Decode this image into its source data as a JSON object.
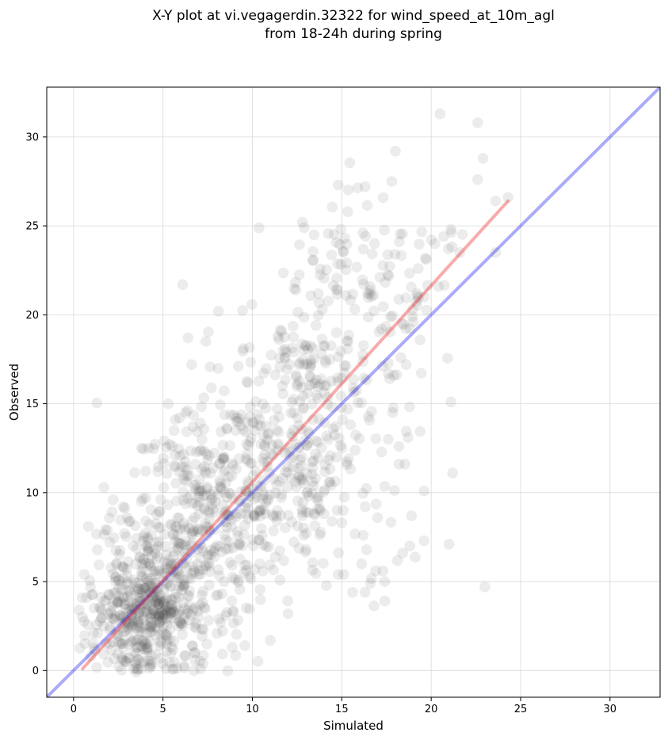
{
  "chart_data": {
    "type": "scatter",
    "title_lines": [
      "X-Y plot at vi.vegagerdin.32322 for wind_speed_at_10m_agl",
      "from 18-24h during spring"
    ],
    "xlabel": "Simulated",
    "ylabel": "Observed",
    "xlim": [
      -1.5,
      32.8
    ],
    "ylim": [
      -1.5,
      32.8
    ],
    "xticks": [
      0,
      5,
      10,
      15,
      20,
      25,
      30
    ],
    "yticks": [
      0,
      5,
      10,
      15,
      20,
      25,
      30
    ],
    "grid": true,
    "point_color": "#404040",
    "one_to_one_line": {
      "x": [
        -1.5,
        32.8
      ],
      "y": [
        -1.5,
        32.8
      ],
      "color": "#0000ee"
    },
    "fit_line": {
      "x": [
        0.5,
        24.3
      ],
      "y": [
        0.1,
        26.4
      ],
      "color": "#ee2222"
    },
    "clusters": [
      {
        "cx": 4.0,
        "cy": 3.2,
        "sx": 1.8,
        "sy": 2.2,
        "n": 520
      },
      {
        "cx": 7.0,
        "cy": 7.5,
        "sx": 2.2,
        "sy": 2.8,
        "n": 320
      },
      {
        "cx": 10.5,
        "cy": 11.5,
        "sx": 2.4,
        "sy": 3.0,
        "n": 230
      },
      {
        "cx": 13.5,
        "cy": 16.5,
        "sx": 2.0,
        "sy": 3.2,
        "n": 170
      },
      {
        "cx": 17.0,
        "cy": 22.5,
        "sx": 2.3,
        "sy": 2.6,
        "n": 110
      },
      {
        "cx": 14.0,
        "cy": 9.0,
        "sx": 2.6,
        "sy": 3.0,
        "n": 60
      }
    ],
    "points": [
      [
        20.5,
        31.3
      ],
      [
        22.6,
        30.8
      ],
      [
        18.0,
        29.2
      ],
      [
        22.9,
        28.8
      ],
      [
        17.8,
        27.5
      ],
      [
        22.6,
        27.6
      ],
      [
        14.8,
        27.3
      ],
      [
        16.3,
        27.2
      ],
      [
        24.3,
        26.6
      ],
      [
        12.8,
        25.2
      ],
      [
        12.9,
        24.9
      ],
      [
        23.6,
        26.4
      ],
      [
        21.1,
        24.8
      ],
      [
        20.2,
        24.0
      ],
      [
        23.6,
        23.5
      ],
      [
        21.2,
        11.1
      ],
      [
        23.0,
        4.7
      ],
      [
        21.0,
        7.1
      ],
      [
        19.6,
        7.3
      ],
      [
        19.6,
        10.1
      ],
      [
        18.7,
        13.1
      ],
      [
        18.3,
        17.6
      ],
      [
        18.6,
        17.2
      ],
      [
        17.6,
        16.7
      ],
      [
        20.4,
        21.6
      ],
      [
        19.2,
        21.2
      ],
      [
        17.4,
        5.0
      ],
      [
        16.9,
        5.6
      ],
      [
        17.3,
        5.6
      ],
      [
        16.6,
        4.9
      ],
      [
        16.3,
        4.4
      ],
      [
        15.6,
        4.4
      ],
      [
        16.2,
        7.6
      ],
      [
        17.0,
        8.6
      ],
      [
        18.4,
        6.6
      ],
      [
        18.8,
        7.0
      ],
      [
        18.2,
        11.6
      ],
      [
        17.6,
        13.0
      ],
      [
        18.2,
        12.6
      ],
      [
        18.9,
        8.7
      ],
      [
        6.1,
        21.7
      ],
      [
        8.1,
        20.2
      ],
      [
        6.4,
        18.7
      ],
      [
        7.4,
        18.5
      ],
      [
        6.6,
        17.2
      ],
      [
        9.5,
        18.1
      ],
      [
        5.3,
        15.0
      ],
      [
        11.0,
        1.7
      ],
      [
        12.0,
        3.2
      ],
      [
        15.0,
        8.3
      ],
      [
        16.1,
        6.0
      ],
      [
        15.1,
        5.4
      ],
      [
        14.8,
        5.4
      ],
      [
        3.8,
        12.5
      ],
      [
        4.2,
        12.5
      ],
      [
        1.7,
        10.3
      ],
      [
        0.5,
        3.0
      ],
      [
        0.6,
        5.4
      ]
    ]
  }
}
